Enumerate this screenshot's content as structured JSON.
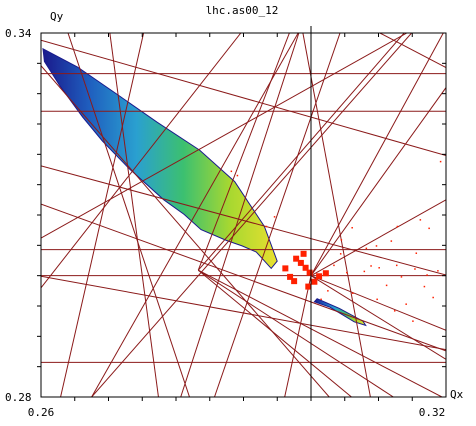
{
  "chart_data": {
    "type": "scatter",
    "title": "lhc.as00_12",
    "xlabel": "Qx",
    "ylabel": "Qy",
    "xlim": [
      0.26,
      0.32
    ],
    "ylim": [
      0.28,
      0.34
    ],
    "x_tick_labels": [
      "0.26",
      "0.32"
    ],
    "y_tick_labels": [
      "0.28",
      "0.34"
    ],
    "x_minor_ticks": [
      0.265,
      0.27,
      0.275,
      0.28,
      0.285,
      0.29,
      0.295,
      0.3,
      0.305,
      0.31,
      0.315
    ],
    "y_minor_ticks": [
      0.285,
      0.29,
      0.295,
      0.3,
      0.305,
      0.31,
      0.315,
      0.32,
      0.325,
      0.33,
      0.335
    ],
    "grid": false,
    "resonance_color": "#8b1a1a",
    "frame_color": "#000000",
    "color_scale": [
      "#1a1a8c",
      "#1f5fbf",
      "#2aa0d0",
      "#3cc070",
      "#a8d830",
      "#e8e030",
      "#ff2000"
    ],
    "vertical_marker_x": 0.3,
    "resonance_lines": [
      [
        [
          0.26,
          0.3333
        ],
        [
          0.32,
          0.3333
        ]
      ],
      [
        [
          0.26,
          0.3
        ],
        [
          0.32,
          0.3
        ]
      ],
      [
        [
          0.26,
          0.3043
        ],
        [
          0.32,
          0.3043
        ]
      ],
      [
        [
          0.26,
          0.2857
        ],
        [
          0.32,
          0.2857
        ]
      ],
      [
        [
          0.3,
          0.28
        ],
        [
          0.3,
          0.34
        ]
      ],
      [
        [
          0.2857,
          0.28
        ],
        [
          0.3043,
          0.34
        ]
      ],
      [
        [
          0.264,
          0.34
        ],
        [
          0.282,
          0.28
        ]
      ],
      [
        [
          0.26,
          0.3388
        ],
        [
          0.32,
          0.3198
        ]
      ],
      [
        [
          0.26,
          0.3346
        ],
        [
          0.3027,
          0.28
        ]
      ],
      [
        [
          0.2702,
          0.34
        ],
        [
          0.2774,
          0.28
        ]
      ],
      [
        [
          0.26,
          0.3118
        ],
        [
          0.32,
          0.2876
        ]
      ],
      [
        [
          0.26,
          0.2999
        ],
        [
          0.32,
          0.2878
        ]
      ],
      [
        [
          0.26,
          0.3181
        ],
        [
          0.32,
          0.3001
        ]
      ],
      [
        [
          0.26,
          0.3271
        ],
        [
          0.32,
          0.3271
        ]
      ],
      [
        [
          0.26,
          0.3062
        ],
        [
          0.3142,
          0.34
        ]
      ],
      [
        [
          0.2675,
          0.28
        ],
        [
          0.3149,
          0.34
        ]
      ],
      [
        [
          0.2675,
          0.28
        ],
        [
          0.2981,
          0.34
        ]
      ],
      [
        [
          0.2629,
          0.28
        ],
        [
          0.2752,
          0.34
        ]
      ],
      [
        [
          0.26,
          0.298
        ],
        [
          0.2896,
          0.34
        ]
      ],
      [
        [
          0.2807,
          0.28
        ],
        [
          0.2982,
          0.34
        ]
      ],
      [
        [
          0.3,
          0.3
        ],
        [
          0.32,
          0.331
        ]
      ],
      [
        [
          0.3,
          0.3
        ],
        [
          0.32,
          0.2862
        ]
      ],
      [
        [
          0.3,
          0.3
        ],
        [
          0.32,
          0.3125
        ]
      ],
      [
        [
          0.3,
          0.3
        ],
        [
          0.32,
          0.291
        ]
      ],
      [
        [
          0.2833,
          0.3009
        ],
        [
          0.306,
          0.28
        ]
      ],
      [
        [
          0.2833,
          0.3009
        ],
        [
          0.3122,
          0.28
        ]
      ],
      [
        [
          0.2833,
          0.3009
        ],
        [
          0.3194,
          0.28
        ]
      ],
      [
        [
          0.2833,
          0.3009
        ],
        [
          0.2968,
          0.34
        ]
      ],
      [
        [
          0.2833,
          0.3009
        ],
        [
          0.3138,
          0.34
        ]
      ],
      [
        [
          0.3,
          0.3
        ],
        [
          0.3196,
          0.34
        ]
      ],
      [
        [
          0.3,
          0.3
        ],
        [
          0.2961,
          0.28
        ]
      ],
      [
        [
          0.2988,
          0.34
        ],
        [
          0.3088,
          0.28
        ]
      ],
      [
        [
          0.3102,
          0.34
        ],
        [
          0.32,
          0.3343
        ]
      ]
    ],
    "series": [
      {
        "region": "main-band",
        "polygon": [
          [
            0.2603,
            0.3374
          ],
          [
            0.2654,
            0.3344
          ],
          [
            0.2714,
            0.3298
          ],
          [
            0.2772,
            0.3253
          ],
          [
            0.2835,
            0.3207
          ],
          [
            0.2887,
            0.3155
          ],
          [
            0.2931,
            0.3081
          ],
          [
            0.295,
            0.3024
          ],
          [
            0.2941,
            0.3012
          ],
          [
            0.2919,
            0.3039
          ],
          [
            0.2898,
            0.3049
          ],
          [
            0.2875,
            0.3058
          ],
          [
            0.2837,
            0.3076
          ],
          [
            0.2812,
            0.3101
          ],
          [
            0.2782,
            0.3125
          ],
          [
            0.2731,
            0.3176
          ],
          [
            0.2691,
            0.3222
          ],
          [
            0.2662,
            0.3261
          ],
          [
            0.2628,
            0.3313
          ],
          [
            0.2605,
            0.3353
          ]
        ]
      },
      {
        "region": "lower-island",
        "polygon": [
          [
            0.3009,
            0.2962
          ],
          [
            0.3042,
            0.2946
          ],
          [
            0.3077,
            0.2925
          ],
          [
            0.3081,
            0.2918
          ],
          [
            0.3064,
            0.2924
          ],
          [
            0.3028,
            0.2948
          ],
          [
            0.3005,
            0.2957
          ]
        ]
      },
      {
        "region": "red-cluster",
        "points": [
          [
            0.2962,
            0.3012
          ],
          [
            0.2975,
            0.2991
          ],
          [
            0.2985,
            0.3021
          ],
          [
            0.2998,
            0.3005
          ],
          [
            0.3005,
            0.299
          ],
          [
            0.2992,
            0.3013
          ],
          [
            0.2978,
            0.3028
          ],
          [
            0.3012,
            0.2999
          ],
          [
            0.3022,
            0.3004
          ],
          [
            0.2996,
            0.2982
          ],
          [
            0.2989,
            0.3036
          ],
          [
            0.2969,
            0.2998
          ]
        ]
      },
      {
        "region": "red-scatter",
        "points": [
          [
            0.3034,
            0.3017
          ],
          [
            0.3053,
            0.3005
          ],
          [
            0.3079,
            0.3007
          ],
          [
            0.3101,
            0.3013
          ],
          [
            0.3127,
            0.3017
          ],
          [
            0.3154,
            0.3011
          ],
          [
            0.3172,
            0.3001
          ],
          [
            0.3188,
            0.3008
          ],
          [
            0.3062,
            0.2971
          ],
          [
            0.3098,
            0.2961
          ],
          [
            0.3124,
            0.2942
          ],
          [
            0.3151,
            0.2925
          ],
          [
            0.3112,
            0.2984
          ],
          [
            0.3141,
            0.2953
          ],
          [
            0.3168,
            0.2982
          ],
          [
            0.3044,
            0.3036
          ],
          [
            0.3082,
            0.3045
          ],
          [
            0.3119,
            0.3057
          ],
          [
            0.3156,
            0.3037
          ],
          [
            0.3175,
            0.3078
          ],
          [
            0.3162,
            0.3092
          ],
          [
            0.3025,
            0.2975
          ],
          [
            0.3045,
            0.3059
          ],
          [
            0.3089,
            0.3016
          ],
          [
            0.3134,
            0.2998
          ],
          [
            0.3181,
            0.2964
          ],
          [
            0.3192,
            0.3188
          ],
          [
            0.3061,
            0.3079
          ],
          [
            0.3097,
            0.3049
          ],
          [
            0.3015,
            0.2961
          ],
          [
            0.3128,
            0.3081
          ],
          [
            0.2946,
            0.3097
          ],
          [
            0.2934,
            0.3081
          ],
          [
            0.2891,
            0.3165
          ],
          [
            0.2882,
            0.3172
          ]
        ]
      }
    ]
  }
}
